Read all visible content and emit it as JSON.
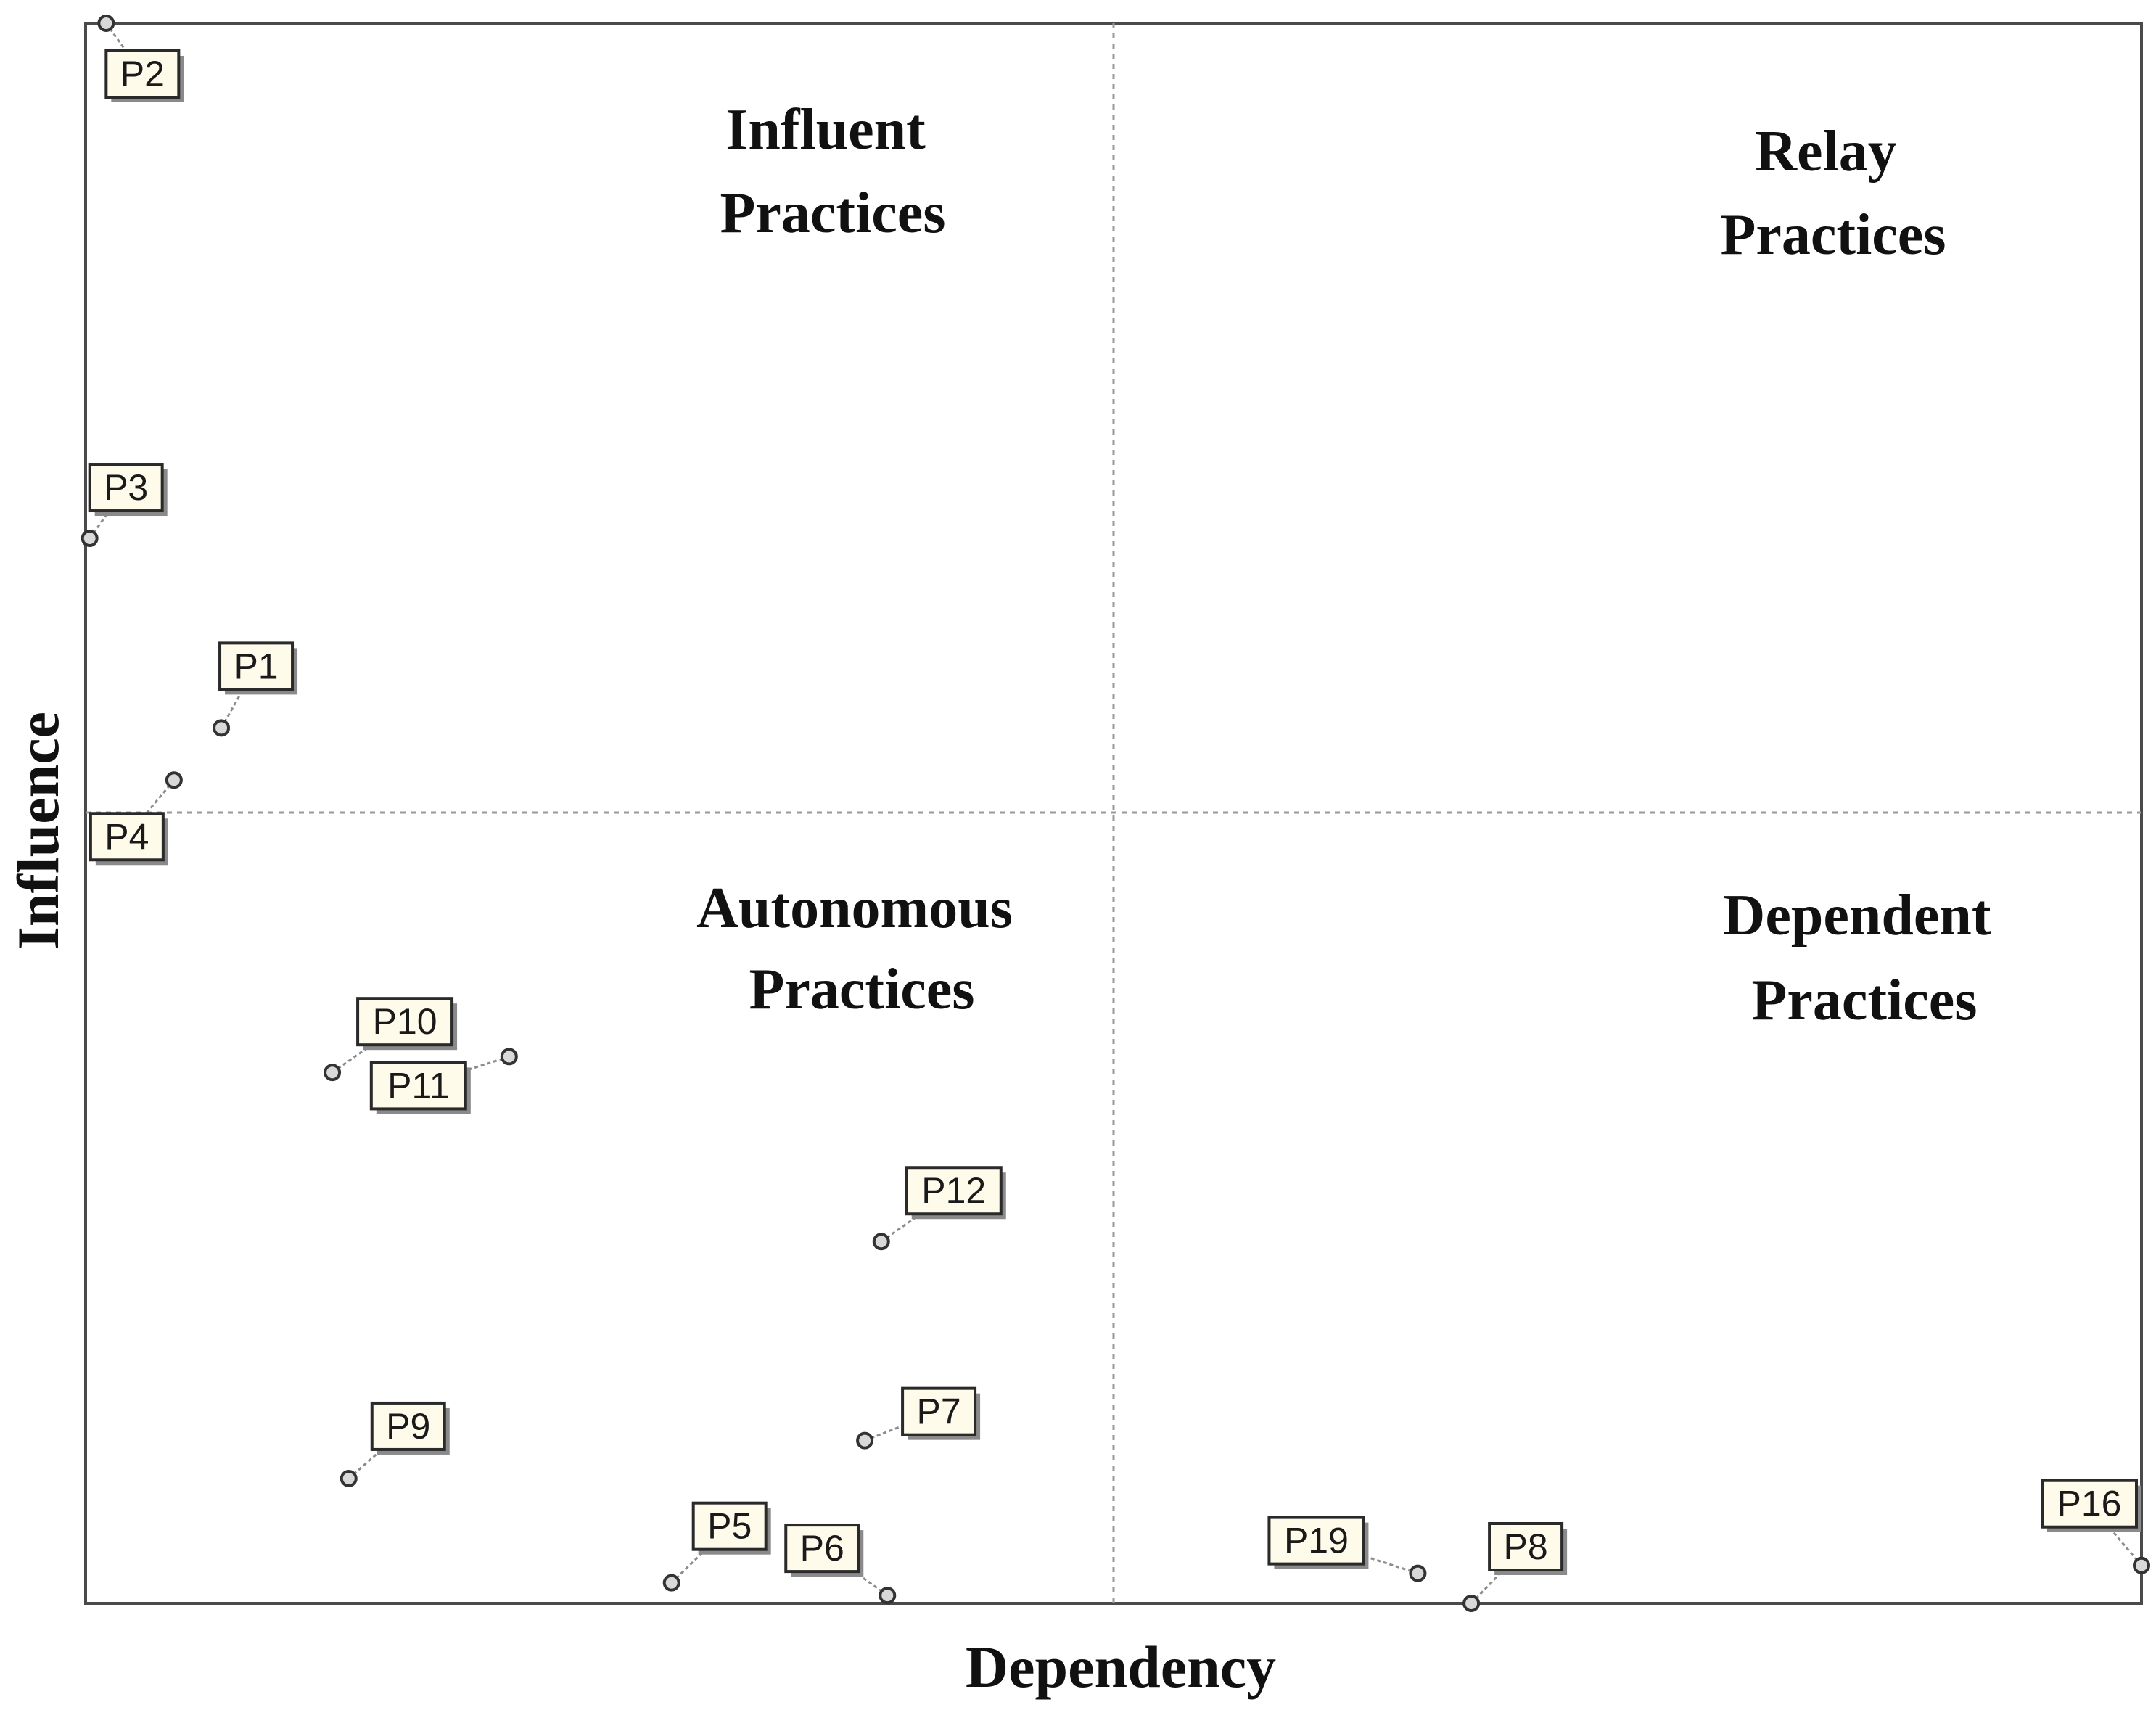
{
  "chart_data": {
    "type": "scatter",
    "title": "",
    "xlabel": "Dependency",
    "ylabel": "Influence",
    "xlim": [
      0,
      100
    ],
    "ylim": [
      0,
      100
    ],
    "grid": false,
    "divider_x": 50,
    "divider_y": 50,
    "quadrants": [
      {
        "id": "influent",
        "lines": [
          "Influent",
          "Practices"
        ]
      },
      {
        "id": "relay",
        "lines": [
          "Relay",
          "Practices"
        ]
      },
      {
        "id": "autonomous",
        "lines": [
          "Autonomous",
          "Practices"
        ]
      },
      {
        "id": "dependent",
        "lines": [
          "Dependent",
          "Practices"
        ]
      }
    ],
    "points": [
      {
        "label": "P2",
        "x": 1.0,
        "y": 100.0
      },
      {
        "label": "P3",
        "x": 0.2,
        "y": 67.4
      },
      {
        "label": "P1",
        "x": 6.6,
        "y": 55.4
      },
      {
        "label": "P4",
        "x": 4.3,
        "y": 52.1
      },
      {
        "label": "P10",
        "x": 12.0,
        "y": 33.6
      },
      {
        "label": "P11",
        "x": 20.6,
        "y": 34.6
      },
      {
        "label": "P12",
        "x": 38.7,
        "y": 22.9
      },
      {
        "label": "P9",
        "x": 12.8,
        "y": 7.9
      },
      {
        "label": "P7",
        "x": 37.9,
        "y": 10.3
      },
      {
        "label": "P5",
        "x": 28.5,
        "y": 1.3
      },
      {
        "label": "P6",
        "x": 39.0,
        "y": 0.5
      },
      {
        "label": "P19",
        "x": 64.8,
        "y": 1.9
      },
      {
        "label": "P8",
        "x": 67.4,
        "y": 0.0
      },
      {
        "label": "P16",
        "x": 100.0,
        "y": 2.4
      }
    ]
  }
}
